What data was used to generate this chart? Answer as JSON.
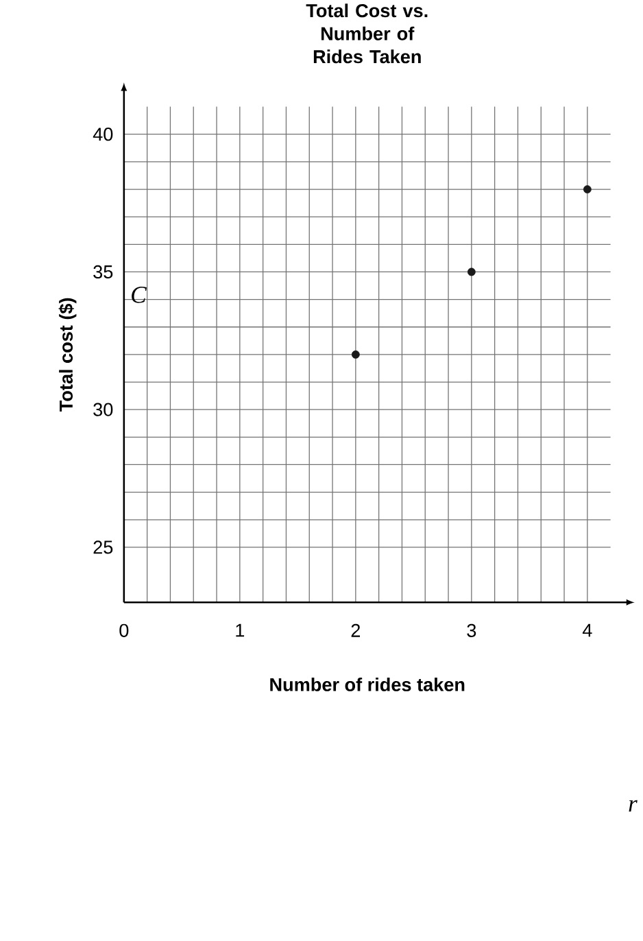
{
  "chart_data": {
    "type": "scatter",
    "title": "Total Cost vs. Number of Rides Taken",
    "xlabel": "Number of rides taken",
    "ylabel": "Total cost ($)",
    "annotations": [
      "C",
      "r"
    ],
    "x": [
      2,
      3,
      4
    ],
    "series": [
      {
        "color": "#1a1a1a",
        "values": [
          32,
          35,
          38
        ]
      }
    ],
    "xlim": [
      0,
      4.2
    ],
    "ylim": [
      23,
      41
    ],
    "xticks": [
      0,
      1,
      2,
      3,
      4
    ],
    "yticks": [
      25,
      30,
      35,
      40
    ],
    "grid": true,
    "marker": "circle"
  }
}
